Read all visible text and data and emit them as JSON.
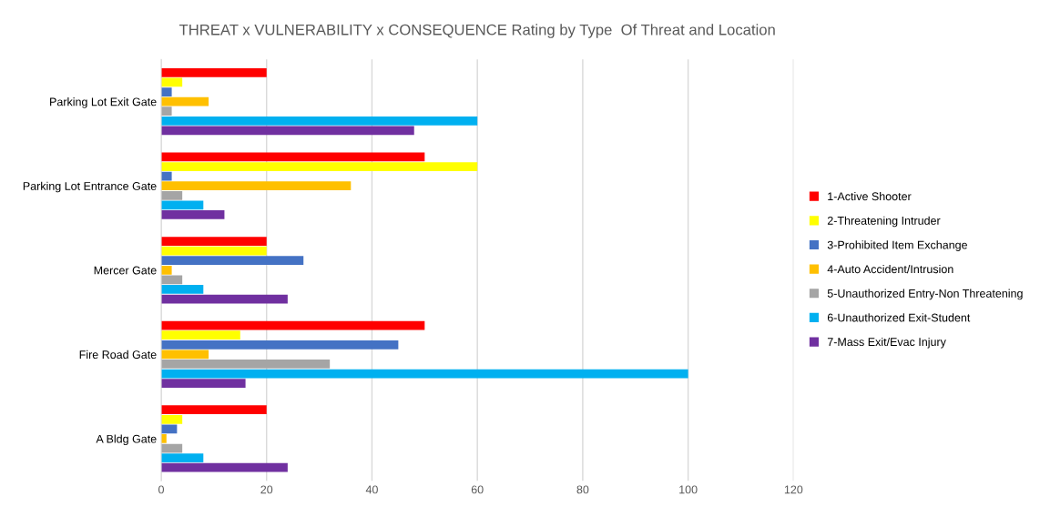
{
  "chart_data": {
    "type": "bar",
    "orientation": "horizontal",
    "title": "THREAT x VULNERABILITY x CONSEQUENCE Rating by Type  Of Threat and Location",
    "categories": [
      "Parking Lot Exit Gate",
      "Parking Lot Entrance Gate",
      "Mercer Gate",
      "Fire Road Gate",
      "A Bldg Gate"
    ],
    "series": [
      {
        "name": "1-Active Shooter",
        "color": "#ff0000",
        "values": [
          20,
          50,
          20,
          50,
          20
        ]
      },
      {
        "name": "2-Threatening Intruder",
        "color": "#ffff00",
        "values": [
          4,
          60,
          20,
          15,
          4
        ]
      },
      {
        "name": "3-Prohibited Item Exchange",
        "color": "#4472c4",
        "values": [
          2,
          2,
          27,
          45,
          3
        ]
      },
      {
        "name": "4-Auto Accident/Intrusion",
        "color": "#ffc000",
        "values": [
          9,
          36,
          2,
          9,
          1
        ]
      },
      {
        "name": "5-Unauthorized Entry-Non Threatening",
        "color": "#a5a5a5",
        "values": [
          2,
          4,
          4,
          32,
          4
        ]
      },
      {
        "name": "6-Unauthorized Exit-Student",
        "color": "#00b0f0",
        "values": [
          60,
          8,
          8,
          100,
          8
        ]
      },
      {
        "name": "7-Mass Exit/Evac Injury",
        "color": "#7030a0",
        "values": [
          48,
          12,
          24,
          16,
          24
        ]
      }
    ],
    "xlim": [
      0,
      120
    ],
    "xticks": [
      0,
      20,
      40,
      60,
      80,
      100,
      120
    ],
    "grid": "x",
    "legend": "right"
  }
}
